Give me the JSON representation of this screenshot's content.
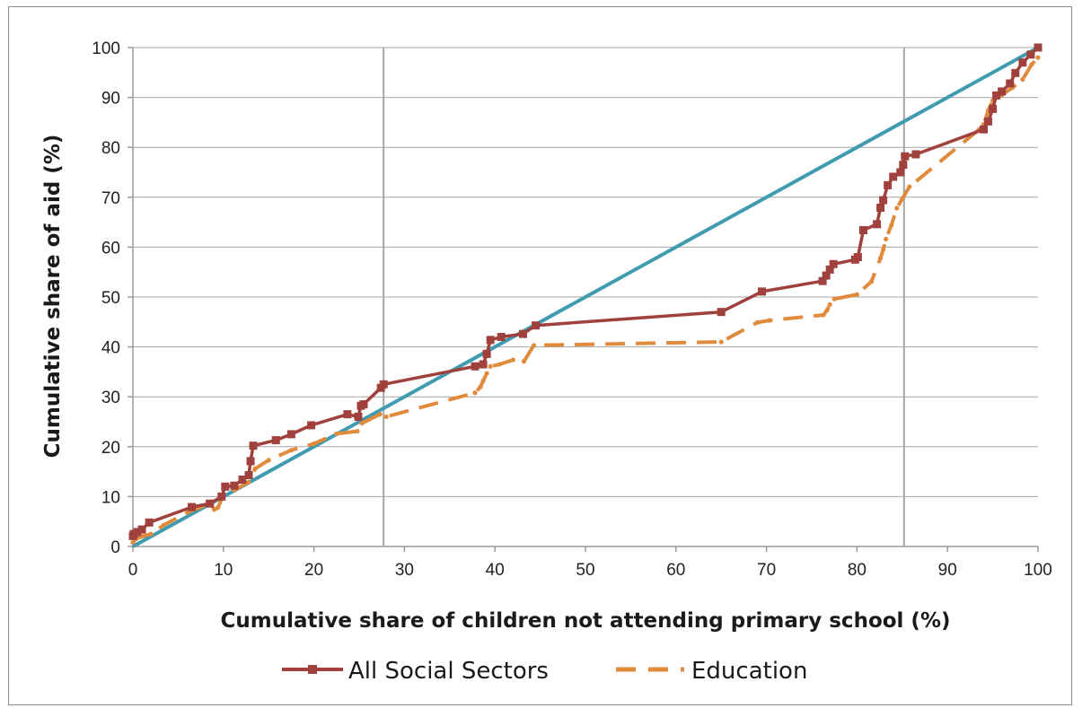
{
  "chart_data": {
    "type": "line",
    "title": "",
    "xlabel": "Cumulative share of children not attending primary school (%)",
    "ylabel": "Cumulative share of aid (%)",
    "xlim": [
      0,
      100
    ],
    "ylim": [
      0,
      100
    ],
    "xticks": [
      0,
      10,
      20,
      30,
      40,
      50,
      60,
      70,
      80,
      90,
      100
    ],
    "yticks": [
      0,
      10,
      20,
      30,
      40,
      50,
      60,
      70,
      80,
      90,
      100
    ],
    "grid": "horizontal",
    "legend_position": "bottom",
    "reference_lines_x": [
      27.7,
      85.2
    ],
    "colors": {
      "all_social_sectors": "#a0413d",
      "education": "#e08a3c",
      "equality_line": "#3e9bb0",
      "gridline": "#a6a6a6",
      "reference_line": "#a6a6a6"
    },
    "series": [
      {
        "name": "All Social Sectors",
        "style": "solid-square-markers",
        "x": [
          0,
          0.1,
          0.5,
          1.0,
          1.8,
          6.5,
          8.5,
          9.8,
          10.2,
          11.2,
          12.1,
          12.8,
          13.0,
          13.3,
          15.8,
          17.5,
          19.7,
          23.7,
          24.9,
          25.2,
          25.5,
          27.4,
          27.7,
          37.8,
          38.7,
          39.1,
          39.5,
          40.7,
          43.1,
          44.5,
          65.0,
          69.5,
          76.2,
          76.6,
          77.0,
          77.4,
          79.8,
          80.1,
          80.7,
          82.2,
          82.6,
          82.9,
          83.4,
          84.0,
          84.8,
          85.1,
          85.3,
          86.5,
          94.0,
          94.5,
          95.0,
          95.4,
          96.0,
          96.9,
          97.5,
          98.3,
          99.2,
          100
        ],
        "y": [
          2.1,
          2.5,
          2.9,
          3.4,
          4.8,
          7.9,
          8.6,
          10.0,
          12.0,
          12.2,
          13.4,
          14.3,
          17.1,
          20.2,
          21.3,
          22.5,
          24.3,
          26.5,
          26.0,
          28.2,
          28.5,
          31.8,
          32.5,
          36.1,
          36.5,
          38.6,
          41.4,
          42.0,
          42.6,
          44.3,
          47.0,
          51.1,
          53.2,
          54.3,
          55.5,
          56.6,
          57.5,
          58.0,
          63.4,
          64.6,
          67.9,
          69.4,
          72.4,
          74.1,
          75.0,
          76.5,
          78.2,
          78.6,
          83.6,
          85.2,
          87.7,
          90.4,
          91.2,
          92.8,
          94.9,
          97.0,
          98.6,
          100
        ]
      },
      {
        "name": "Education",
        "style": "dashed",
        "x": [
          0,
          0.4,
          1.2,
          2.0,
          3.4,
          6.0,
          8.5,
          9.0,
          9.4,
          10.0,
          11.5,
          12.8,
          13.5,
          15.0,
          17.5,
          20.0,
          22.5,
          24.8,
          25.3,
          27.3,
          28.0,
          37.8,
          38.4,
          38.7,
          39.1,
          39.5,
          40.5,
          42.0,
          43.2,
          44.3,
          65.0,
          69.0,
          70.3,
          76.3,
          76.7,
          77.0,
          77.5,
          80.0,
          81.6,
          82.6,
          82.9,
          83.2,
          83.8,
          84.4,
          85.0,
          85.8,
          93.5,
          94.0,
          94.5,
          95.0,
          96.0,
          97.2,
          98.3,
          99.3,
          100
        ],
        "y": [
          0.8,
          1.6,
          2.1,
          2.5,
          4.3,
          6.8,
          8.6,
          7.4,
          7.8,
          10.3,
          11.6,
          12.9,
          15.6,
          17.3,
          19.3,
          20.6,
          22.6,
          23.1,
          24.7,
          26.5,
          26.0,
          30.8,
          32.0,
          33.2,
          34.7,
          36.1,
          36.5,
          37.4,
          37.1,
          40.3,
          41.0,
          44.9,
          45.3,
          46.4,
          47.4,
          48.5,
          49.6,
          50.5,
          53.1,
          57.8,
          59.5,
          61.6,
          64.4,
          67.8,
          69.7,
          72.1,
          83.6,
          84.6,
          87.4,
          89.4,
          90.5,
          92.0,
          93.6,
          96.6,
          98.0
        ]
      },
      {
        "name": "",
        "style": "solid-equality",
        "x": [
          0,
          100
        ],
        "y": [
          0,
          100
        ]
      }
    ]
  }
}
